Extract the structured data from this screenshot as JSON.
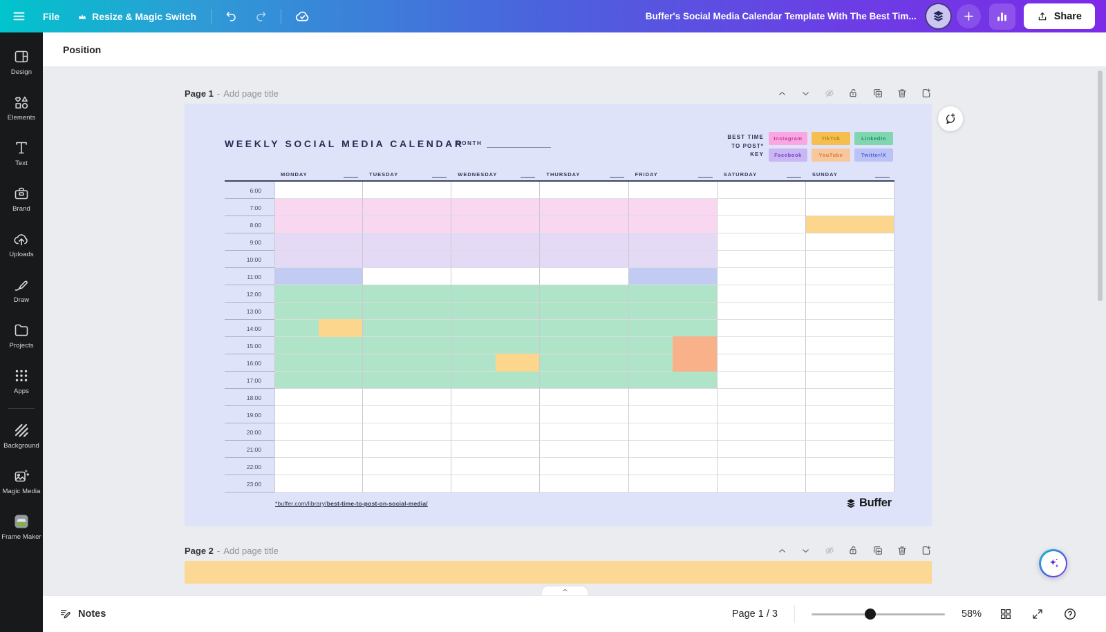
{
  "topbar": {
    "file_label": "File",
    "resize_label": "Resize & Magic Switch",
    "doc_title": "Buffer's Social Media Calendar Template With The Best Tim...",
    "share_label": "Share"
  },
  "toolbar": {
    "position_label": "Position"
  },
  "sidebar": {
    "items": [
      {
        "id": "design",
        "label": "Design"
      },
      {
        "id": "elements",
        "label": "Elements"
      },
      {
        "id": "text",
        "label": "Text"
      },
      {
        "id": "brand",
        "label": "Brand"
      },
      {
        "id": "uploads",
        "label": "Uploads"
      },
      {
        "id": "draw",
        "label": "Draw"
      },
      {
        "id": "projects",
        "label": "Projects"
      },
      {
        "id": "apps",
        "label": "Apps"
      },
      {
        "id": "background",
        "label": "Background",
        "divider_before": true
      },
      {
        "id": "magic-media",
        "label": "Magic Media"
      },
      {
        "id": "frame-maker",
        "label": "Frame Maker"
      }
    ]
  },
  "canvas": {
    "page1": {
      "name": "Page 1",
      "separator": "-",
      "placeholder": "Add page title"
    },
    "page2": {
      "name": "Page 2",
      "separator": "-",
      "placeholder": "Add page title"
    },
    "page_controls": [
      {
        "id": "move-page-up",
        "icon": "chevron-up",
        "disabled": false
      },
      {
        "id": "move-page-down",
        "icon": "chevron-down",
        "disabled": false
      },
      {
        "id": "hide-page",
        "icon": "eye-off",
        "disabled": true
      },
      {
        "id": "lock-page",
        "icon": "lock-open",
        "disabled": false
      },
      {
        "id": "duplicate-page",
        "icon": "duplicate",
        "disabled": false
      },
      {
        "id": "delete-page",
        "icon": "trash",
        "disabled": false
      },
      {
        "id": "add-page",
        "icon": "add-page",
        "disabled": false
      }
    ],
    "page2_strip_color": "#fbd994"
  },
  "calendar": {
    "title": "WEEKLY SOCIAL MEDIA CALENDAR",
    "month_label": "MONTH",
    "key_label_lines": [
      "BEST TIME",
      "TO POST*",
      "KEY"
    ],
    "key_badges": [
      [
        {
          "label": "Instagram",
          "bg": "#f9a6e1",
          "fg": "#bb42a4"
        },
        {
          "label": "TikTok",
          "bg": "#f5bf4f",
          "fg": "#ad841c"
        },
        {
          "label": "LinkedIn",
          "bg": "#81d6af",
          "fg": "#14916b"
        }
      ],
      [
        {
          "label": "Facebook",
          "bg": "#c9b6f3",
          "fg": "#7245d0"
        },
        {
          "label": "YouTube",
          "bg": "#f9c79d",
          "fg": "#d07f33"
        },
        {
          "label": "Twitter/X",
          "bg": "#bbc3f6",
          "fg": "#4c5fd3"
        }
      ]
    ],
    "days": [
      "MONDAY",
      "TUESDAY",
      "WEDNESDAY",
      "THURSDAY",
      "FRIDAY",
      "SATURDAY",
      "SUNDAY"
    ],
    "times": [
      "6:00",
      "7:00",
      "8:00",
      "9:00",
      "10:00",
      "11:00",
      "12:00",
      "13:00",
      "14:00",
      "15:00",
      "16:00",
      "17:00",
      "18:00",
      "19:00",
      "20:00",
      "21:00",
      "22:00",
      "23:00"
    ],
    "fill_colors": {
      "instagram": "#fad7f1",
      "facebook": "#e4daf6",
      "twitter": "#c2ccf3",
      "linkedin": "#b0e4c9",
      "tiktok": "#fbd68c",
      "youtube": "#f8b189"
    },
    "grid_fills": [
      {
        "time": "7:00",
        "cols": [
          0,
          1,
          2,
          3,
          4
        ],
        "color": "instagram"
      },
      {
        "time": "8:00",
        "cols": [
          0,
          1,
          2,
          3,
          4
        ],
        "color": "instagram"
      },
      {
        "time": "8:00",
        "cols": [
          6
        ],
        "color": "tiktok"
      },
      {
        "time": "9:00",
        "cols": [
          0,
          1,
          2,
          3,
          4
        ],
        "color": "facebook"
      },
      {
        "time": "10:00",
        "cols": [
          0,
          1,
          2,
          3,
          4
        ],
        "color": "facebook"
      },
      {
        "time": "11:00",
        "cols": [
          0,
          4
        ],
        "color": "twitter"
      },
      {
        "time": "12:00",
        "cols": [
          0,
          1,
          2,
          3,
          4
        ],
        "color": "linkedin"
      },
      {
        "time": "13:00",
        "cols": [
          0,
          1,
          2,
          3,
          4
        ],
        "color": "linkedin"
      },
      {
        "time": "14:00",
        "cols": [
          0,
          1,
          2,
          3,
          4
        ],
        "color": "linkedin"
      },
      {
        "time": "15:00",
        "cols": [
          0,
          1,
          2,
          3,
          4
        ],
        "color": "linkedin"
      },
      {
        "time": "16:00",
        "cols": [
          0,
          1,
          2,
          3,
          4
        ],
        "color": "linkedin"
      },
      {
        "time": "17:00",
        "cols": [
          0,
          1,
          2,
          3,
          4
        ],
        "color": "linkedin"
      }
    ],
    "grid_half_fills": [
      {
        "time": "14:00",
        "col": 0,
        "color": "tiktok"
      },
      {
        "time": "16:00",
        "col": 2,
        "color": "tiktok"
      },
      {
        "time": "15:00",
        "col": 4,
        "color": "youtube"
      },
      {
        "time": "16:00",
        "col": 4,
        "color": "youtube"
      }
    ],
    "footer_link_prefix": "*buffer.com/library/",
    "footer_link_bold": "best-time-to-post-on-social-media/",
    "brand_name": "Buffer"
  },
  "statusbar": {
    "notes_label": "Notes",
    "page_indicator": "Page 1 / 3",
    "zoom_percent": "58%",
    "slider_thumb_percent": 44
  }
}
